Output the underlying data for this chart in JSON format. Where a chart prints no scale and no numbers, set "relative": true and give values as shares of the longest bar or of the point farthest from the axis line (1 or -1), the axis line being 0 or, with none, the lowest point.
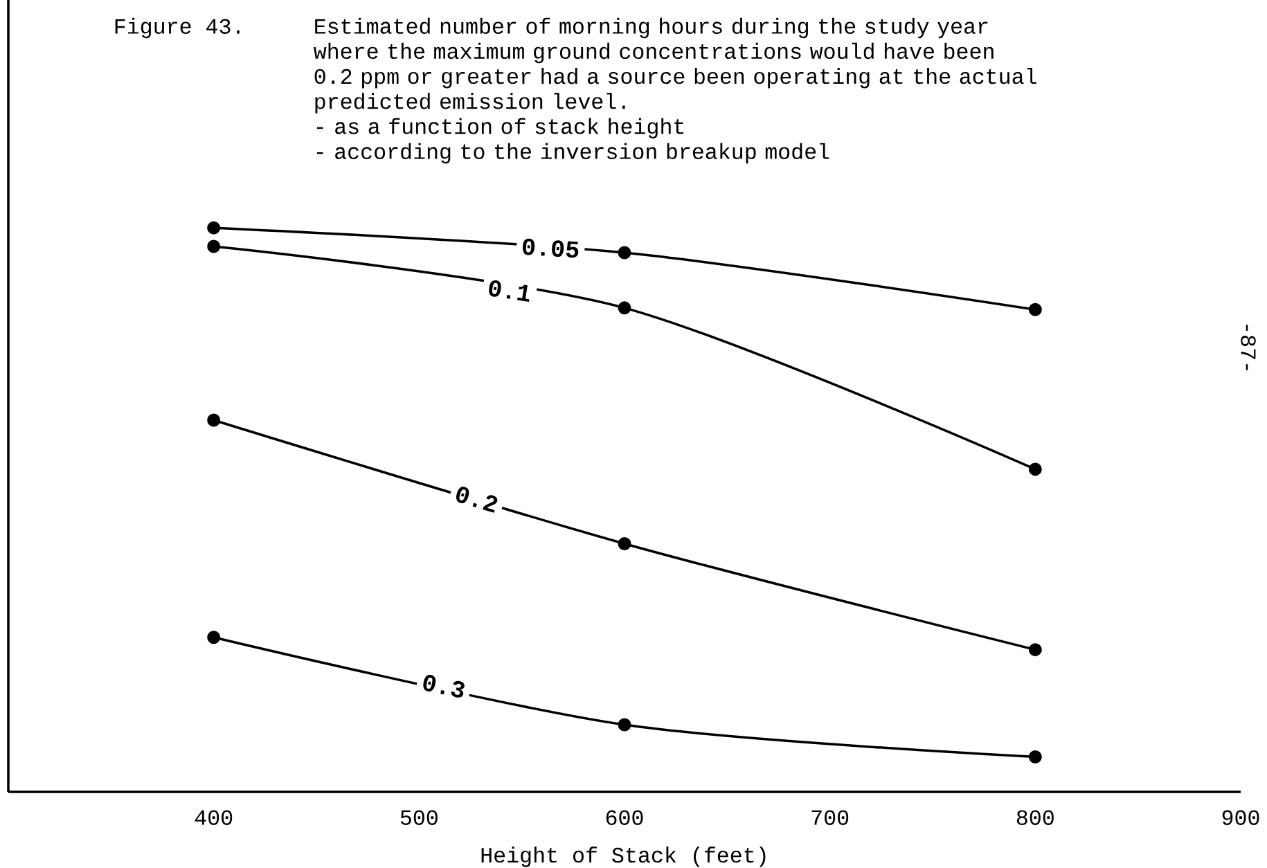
{
  "chart_data": {
    "type": "line",
    "relative": true,
    "title": "Figure 43.",
    "subtitle": "Estimated number of morning hours during the study year where the maximum ground concentrations would have been 0.2 ppm or greater had a source been operating at the actual predicted emission level.",
    "annotations": [
      "- as a function of stack height",
      "- according to the inversion breakup model",
      "-87-"
    ],
    "xlabel": "Height of Stack (feet)",
    "x": [
      400,
      600,
      800
    ],
    "xlim": [
      300,
      900
    ],
    "xticks": [
      400,
      500,
      600,
      700,
      800,
      900
    ],
    "series": [
      {
        "name": "0.05",
        "color": "#000000",
        "values": [
          1.0,
          0.956,
          0.855
        ]
      },
      {
        "name": "0.1",
        "color": "#000000",
        "values": [
          0.967,
          0.858,
          0.572
        ]
      },
      {
        "name": "0.2",
        "color": "#000000",
        "values": [
          0.659,
          0.44,
          0.252
        ]
      },
      {
        "name": "0.3",
        "color": "#000000",
        "values": [
          0.274,
          0.119,
          0.062
        ]
      }
    ],
    "marker": "circle",
    "line_style": "solid",
    "grid": false
  }
}
